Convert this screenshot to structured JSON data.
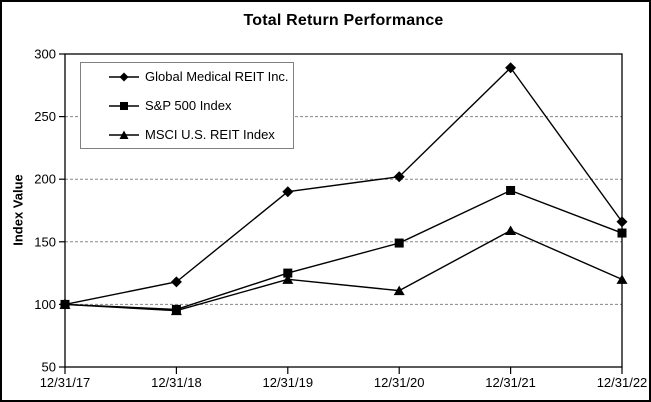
{
  "chart_data": {
    "type": "line",
    "title": "Total Return Performance",
    "xlabel": "",
    "ylabel": "Index Value",
    "categories": [
      "12/31/17",
      "12/31/18",
      "12/31/19",
      "12/31/20",
      "12/31/21",
      "12/31/22"
    ],
    "series": [
      {
        "name": "Global Medical REIT Inc.",
        "marker": "diamond",
        "values": [
          100,
          118,
          190,
          202,
          289,
          166
        ]
      },
      {
        "name": "S&P 500 Index",
        "marker": "square",
        "values": [
          100,
          96,
          125,
          149,
          191,
          157
        ]
      },
      {
        "name": "MSCI U.S. REIT Index",
        "marker": "triangle",
        "values": [
          100,
          95,
          120,
          111,
          159,
          120
        ]
      }
    ],
    "ylim": [
      50,
      300
    ],
    "yticks": [
      50,
      100,
      150,
      200,
      250,
      300
    ],
    "grid": "horizontal-dashed",
    "legend_position": "top-left-inside",
    "colors": {
      "line": "#000000",
      "marker": "#000000",
      "grid": "#888888",
      "axis": "#000000",
      "legend_border": "#808080",
      "background": "#ffffff"
    }
  }
}
